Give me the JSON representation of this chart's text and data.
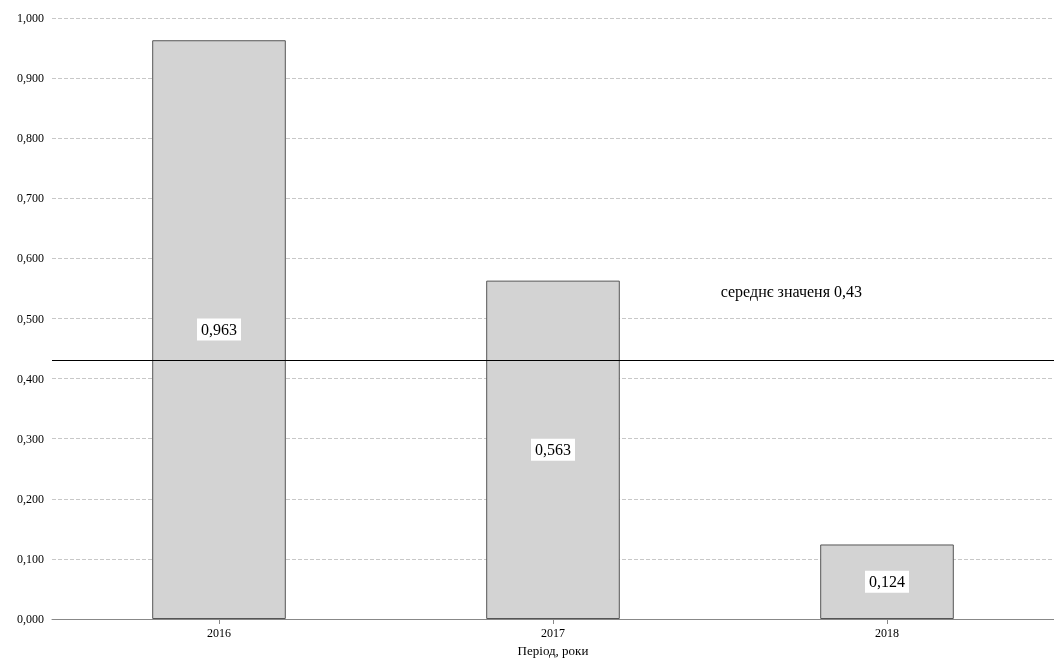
{
  "chart_data": {
    "type": "bar",
    "xlabel": "Період, роки",
    "categories": [
      "2016",
      "2017",
      "2018"
    ],
    "series": [
      {
        "color": "#d3d3d3",
        "values": [
          0.963,
          0.563,
          0.124
        ],
        "value_labels": [
          "0,963",
          "0,563",
          "0,124"
        ]
      }
    ],
    "ylim": [
      0,
      1
    ],
    "yticks": [
      {
        "value": 0,
        "label": "0,000"
      },
      {
        "value": 0.1,
        "label": "0,100"
      },
      {
        "value": 0.2,
        "label": "0,200"
      },
      {
        "value": 0.3,
        "label": "0,300"
      },
      {
        "value": 0.4,
        "label": "0,400"
      },
      {
        "value": 0.5,
        "label": "0,500"
      },
      {
        "value": 0.6,
        "label": "0,600"
      },
      {
        "value": 0.7,
        "label": "0,700"
      },
      {
        "value": 0.8,
        "label": "0,800"
      },
      {
        "value": 0.9,
        "label": "0,900"
      },
      {
        "value": 1,
        "label": "1,000"
      }
    ],
    "grid": "y",
    "line_style": "dashed",
    "ref_lines": [
      {
        "axis": "y",
        "value": 0.43,
        "label": "середнє значеня 0,43",
        "color": "#000000"
      }
    ]
  }
}
